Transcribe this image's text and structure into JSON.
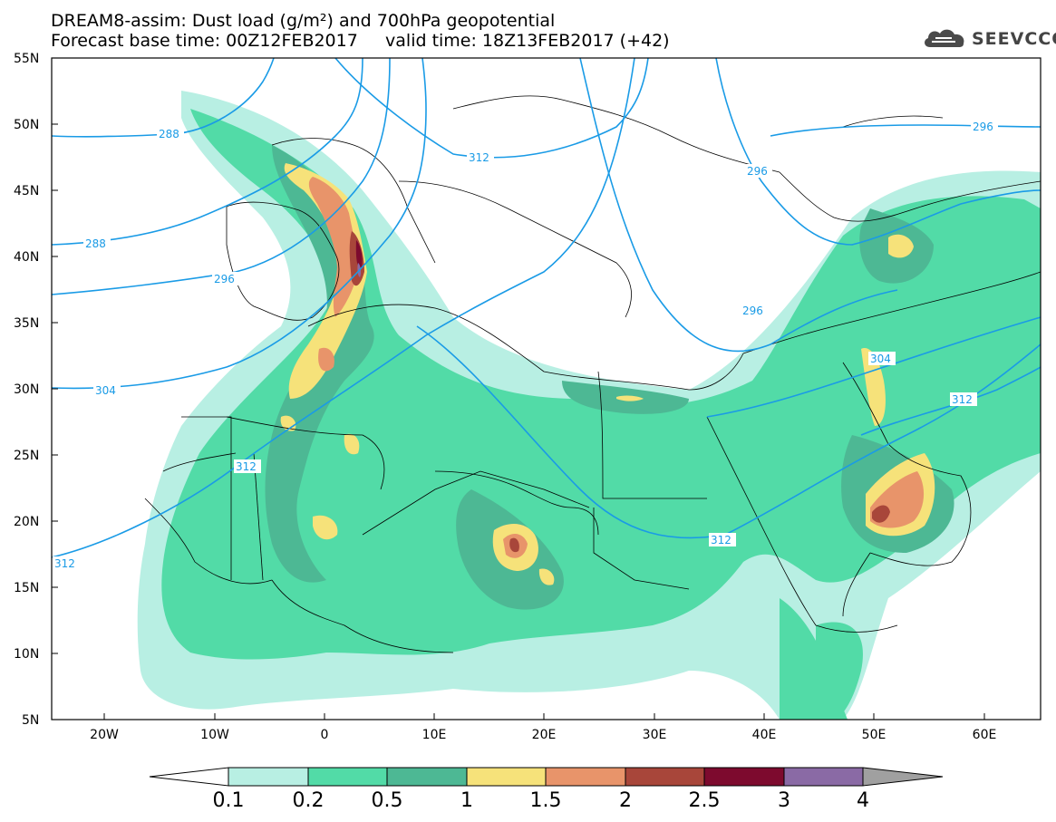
{
  "title": {
    "line1": "DREAM8-assim: Dust load (g/m²) and 700hPa geopotential",
    "line2": "Forecast base time: 00Z12FEB2017     valid time: 18Z13FEB2017 (+42)"
  },
  "logo": {
    "text": "SEEVCCC",
    "icon": "cloud-icon"
  },
  "axes": {
    "y_ticks": [
      "55N",
      "50N",
      "45N",
      "40N",
      "35N",
      "30N",
      "25N",
      "20N",
      "15N",
      "10N",
      "5N"
    ],
    "x_ticks": [
      "20W",
      "10W",
      "0",
      "10E",
      "20E",
      "30E",
      "40E",
      "50E",
      "60E"
    ]
  },
  "contour_labels": [
    "288",
    "312",
    "296",
    "288",
    "296",
    "304",
    "312",
    "312",
    "296",
    "296",
    "304",
    "312",
    "312"
  ],
  "colorbar": {
    "labels": [
      "0.1",
      "0.2",
      "0.5",
      "1",
      "1.5",
      "2",
      "2.5",
      "3",
      "4"
    ],
    "colors": [
      "#b8efe3",
      "#52dba7",
      "#4db894",
      "#f6e27a",
      "#e8946a",
      "#a8463a",
      "#7d0a2e",
      "#8a6aa5",
      "#a0a0a0"
    ]
  },
  "colors": {
    "contour": "#1a9be6",
    "dust_low": "#b8efe3",
    "dust_mid": "#52dba7",
    "dust_high": "#4db894",
    "dust_peak": "#a8463a"
  }
}
